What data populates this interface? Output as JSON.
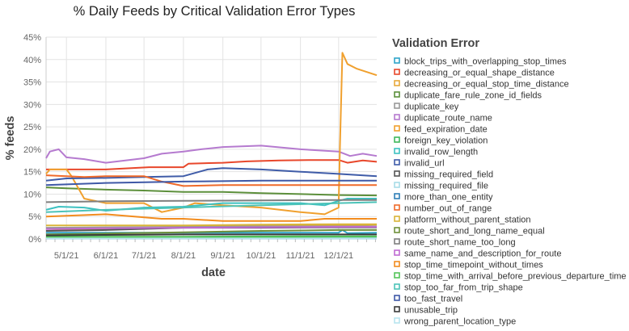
{
  "chart_data": {
    "type": "line",
    "title": "% Daily Feeds by Critical Validation Error Types",
    "xlabel": "date",
    "ylabel": "% feeds",
    "ylim": [
      0,
      0.45
    ],
    "xlim": [
      "2021-04-15",
      "2021-12-31"
    ],
    "grid": true,
    "legend_position": "right",
    "legend_title": "Validation Error",
    "y_ticks": [
      {
        "value": 0,
        "label": "0%"
      },
      {
        "value": 0.05,
        "label": "5%"
      },
      {
        "value": 0.1,
        "label": "10%"
      },
      {
        "value": 0.15,
        "label": "15%"
      },
      {
        "value": 0.2,
        "label": "20%"
      },
      {
        "value": 0.25,
        "label": "25%"
      },
      {
        "value": 0.3,
        "label": "30%"
      },
      {
        "value": 0.35,
        "label": "35%"
      },
      {
        "value": 0.4,
        "label": "40%"
      },
      {
        "value": 0.45,
        "label": "45%"
      }
    ],
    "x_ticks": [
      {
        "date": "2021-05-01",
        "label": "5/1/21"
      },
      {
        "date": "2021-06-01",
        "label": "6/1/21"
      },
      {
        "date": "2021-07-01",
        "label": "7/1/21"
      },
      {
        "date": "2021-08-01",
        "label": "8/1/21"
      },
      {
        "date": "2021-09-01",
        "label": "9/1/21"
      },
      {
        "date": "2021-10-01",
        "label": "10/1/21"
      },
      {
        "date": "2021-11-01",
        "label": "11/1/21"
      },
      {
        "date": "2021-12-01",
        "label": "12/1/21"
      }
    ],
    "series": [
      {
        "name": "block_trips_with_overlapping_stop_times",
        "color": "#2ea4c9",
        "points": [
          [
            "2021-04-15",
            0.014
          ],
          [
            "2021-07-01",
            0.014
          ],
          [
            "2021-12-01",
            0.014
          ],
          [
            "2021-12-04",
            0.02
          ],
          [
            "2021-12-08",
            0.013
          ],
          [
            "2021-12-31",
            0.014
          ]
        ]
      },
      {
        "name": "decreasing_or_equal_shape_distance",
        "color": "#e8472b",
        "points": [
          [
            "2021-04-15",
            0.155
          ],
          [
            "2021-05-10",
            0.155
          ],
          [
            "2021-06-01",
            0.155
          ],
          [
            "2021-07-05",
            0.16
          ],
          [
            "2021-08-01",
            0.16
          ],
          [
            "2021-08-05",
            0.168
          ],
          [
            "2021-09-01",
            0.17
          ],
          [
            "2021-09-20",
            0.173
          ],
          [
            "2021-10-15",
            0.175
          ],
          [
            "2021-11-10",
            0.176
          ],
          [
            "2021-12-01",
            0.176
          ],
          [
            "2021-12-08",
            0.17
          ],
          [
            "2021-12-20",
            0.175
          ],
          [
            "2021-12-31",
            0.172
          ]
        ]
      },
      {
        "name": "decreasing_or_equal_stop_time_distance",
        "color": "#e8a83a",
        "points": [
          [
            "2021-04-15",
            0.018
          ],
          [
            "2021-05-01",
            0.02
          ],
          [
            "2021-06-01",
            0.022
          ],
          [
            "2021-07-01",
            0.025
          ],
          [
            "2021-08-01",
            0.028
          ],
          [
            "2021-09-01",
            0.03
          ],
          [
            "2021-10-01",
            0.03
          ],
          [
            "2021-11-01",
            0.03
          ],
          [
            "2021-12-01",
            0.03
          ],
          [
            "2021-12-31",
            0.032
          ]
        ]
      },
      {
        "name": "duplicate_fare_rule_zone_id_fields",
        "color": "#5c8f3b",
        "points": [
          [
            "2021-04-15",
            0.115
          ],
          [
            "2021-05-01",
            0.113
          ],
          [
            "2021-06-01",
            0.11
          ],
          [
            "2021-07-01",
            0.108
          ],
          [
            "2021-08-01",
            0.105
          ],
          [
            "2021-09-01",
            0.105
          ],
          [
            "2021-10-01",
            0.102
          ],
          [
            "2021-11-01",
            0.1
          ],
          [
            "2021-12-01",
            0.098
          ],
          [
            "2021-12-31",
            0.097
          ]
        ]
      },
      {
        "name": "duplicate_key",
        "color": "#999999",
        "points": [
          [
            "2021-04-15",
            0.025
          ],
          [
            "2021-06-01",
            0.026
          ],
          [
            "2021-08-01",
            0.027
          ],
          [
            "2021-10-01",
            0.028
          ],
          [
            "2021-12-01",
            0.028
          ],
          [
            "2021-12-31",
            0.028
          ]
        ]
      },
      {
        "name": "duplicate_route_name",
        "color": "#b57acf",
        "points": [
          [
            "2021-04-15",
            0.18
          ],
          [
            "2021-04-18",
            0.195
          ],
          [
            "2021-04-25",
            0.2
          ],
          [
            "2021-05-01",
            0.182
          ],
          [
            "2021-05-15",
            0.178
          ],
          [
            "2021-06-01",
            0.17
          ],
          [
            "2021-07-01",
            0.18
          ],
          [
            "2021-07-15",
            0.19
          ],
          [
            "2021-08-01",
            0.195
          ],
          [
            "2021-08-15",
            0.2
          ],
          [
            "2021-09-01",
            0.205
          ],
          [
            "2021-10-01",
            0.208
          ],
          [
            "2021-11-01",
            0.2
          ],
          [
            "2021-12-01",
            0.195
          ],
          [
            "2021-12-10",
            0.185
          ],
          [
            "2021-12-20",
            0.19
          ],
          [
            "2021-12-31",
            0.185
          ]
        ]
      },
      {
        "name": "feed_expiration_date",
        "color": "#f0a02e",
        "points": [
          [
            "2021-04-15",
            0.145
          ],
          [
            "2021-04-18",
            0.155
          ],
          [
            "2021-05-01",
            0.155
          ],
          [
            "2021-05-05",
            0.14
          ],
          [
            "2021-05-15",
            0.09
          ],
          [
            "2021-06-01",
            0.08
          ],
          [
            "2021-07-01",
            0.08
          ],
          [
            "2021-07-15",
            0.06
          ],
          [
            "2021-08-01",
            0.07
          ],
          [
            "2021-08-10",
            0.08
          ],
          [
            "2021-09-01",
            0.075
          ],
          [
            "2021-10-01",
            0.07
          ],
          [
            "2021-11-01",
            0.06
          ],
          [
            "2021-11-20",
            0.055
          ],
          [
            "2021-12-01",
            0.07
          ],
          [
            "2021-12-02",
            0.2
          ],
          [
            "2021-12-04",
            0.415
          ],
          [
            "2021-12-08",
            0.39
          ],
          [
            "2021-12-15",
            0.38
          ],
          [
            "2021-12-31",
            0.365
          ]
        ]
      },
      {
        "name": "foreign_key_violation",
        "color": "#3fb85b",
        "points": [
          [
            "2021-04-15",
            0.005
          ],
          [
            "2021-08-01",
            0.005
          ],
          [
            "2021-12-01",
            0.006
          ],
          [
            "2021-12-31",
            0.006
          ]
        ]
      },
      {
        "name": "invalid_row_length",
        "color": "#3dc1c1",
        "points": [
          [
            "2021-04-15",
            0.065
          ],
          [
            "2021-04-25",
            0.072
          ],
          [
            "2021-05-15",
            0.07
          ],
          [
            "2021-06-01",
            0.063
          ],
          [
            "2021-07-01",
            0.07
          ],
          [
            "2021-08-01",
            0.072
          ],
          [
            "2021-09-01",
            0.08
          ],
          [
            "2021-10-01",
            0.08
          ],
          [
            "2021-11-01",
            0.08
          ],
          [
            "2021-11-20",
            0.075
          ],
          [
            "2021-12-01",
            0.085
          ],
          [
            "2021-12-08",
            0.09
          ],
          [
            "2021-12-31",
            0.09
          ]
        ]
      },
      {
        "name": "invalid_url",
        "color": "#3f5ca8",
        "points": [
          [
            "2021-04-15",
            0.13
          ],
          [
            "2021-05-01",
            0.135
          ],
          [
            "2021-06-01",
            0.136
          ],
          [
            "2021-07-01",
            0.138
          ],
          [
            "2021-08-01",
            0.14
          ],
          [
            "2021-08-20",
            0.155
          ],
          [
            "2021-09-01",
            0.158
          ],
          [
            "2021-10-01",
            0.155
          ],
          [
            "2021-11-01",
            0.15
          ],
          [
            "2021-12-01",
            0.145
          ],
          [
            "2021-12-31",
            0.14
          ]
        ]
      },
      {
        "name": "missing_required_field",
        "color": "#555555",
        "points": [
          [
            "2021-04-15",
            0.018
          ],
          [
            "2021-06-01",
            0.02
          ],
          [
            "2021-08-01",
            0.025
          ],
          [
            "2021-10-01",
            0.025
          ],
          [
            "2021-12-01",
            0.026
          ],
          [
            "2021-12-31",
            0.026
          ]
        ]
      },
      {
        "name": "missing_required_file",
        "color": "#a8dce8",
        "points": [
          [
            "2021-04-15",
            0.002
          ],
          [
            "2021-08-01",
            0.002
          ],
          [
            "2021-12-01",
            0.003
          ],
          [
            "2021-12-31",
            0.003
          ]
        ]
      },
      {
        "name": "more_than_one_entity",
        "color": "#2f7fb8",
        "points": [
          [
            "2021-04-15",
            0.001
          ],
          [
            "2021-12-31",
            0.001
          ]
        ]
      },
      {
        "name": "number_out_of_range",
        "color": "#ef6a2a",
        "points": [
          [
            "2021-04-15",
            0.142
          ],
          [
            "2021-05-01",
            0.14
          ],
          [
            "2021-05-15",
            0.138
          ],
          [
            "2021-06-01",
            0.14
          ],
          [
            "2021-07-01",
            0.14
          ],
          [
            "2021-07-15",
            0.128
          ],
          [
            "2021-08-01",
            0.118
          ],
          [
            "2021-09-01",
            0.12
          ],
          [
            "2021-10-01",
            0.12
          ],
          [
            "2021-11-01",
            0.12
          ],
          [
            "2021-12-01",
            0.12
          ],
          [
            "2021-12-31",
            0.12
          ]
        ]
      },
      {
        "name": "platform_without_parent_station",
        "color": "#d9b438",
        "points": [
          [
            "2021-04-15",
            0.03
          ],
          [
            "2021-06-01",
            0.03
          ],
          [
            "2021-08-01",
            0.03
          ],
          [
            "2021-10-01",
            0.032
          ],
          [
            "2021-12-01",
            0.033
          ],
          [
            "2021-12-31",
            0.033
          ]
        ]
      },
      {
        "name": "route_short_and_long_name_equal",
        "color": "#6e8f3a",
        "points": [
          [
            "2021-04-15",
            0.01
          ],
          [
            "2021-06-01",
            0.012
          ],
          [
            "2021-08-01",
            0.015
          ],
          [
            "2021-10-01",
            0.018
          ],
          [
            "2021-12-01",
            0.02
          ],
          [
            "2021-12-31",
            0.02
          ]
        ]
      },
      {
        "name": "route_short_name_too_long",
        "color": "#7f7f7f",
        "points": [
          [
            "2021-04-15",
            0.082
          ],
          [
            "2021-06-01",
            0.084
          ],
          [
            "2021-08-01",
            0.085
          ],
          [
            "2021-10-01",
            0.086
          ],
          [
            "2021-12-01",
            0.087
          ],
          [
            "2021-12-31",
            0.087
          ]
        ]
      },
      {
        "name": "same_name_and_description_for_route",
        "color": "#c06ad2",
        "points": [
          [
            "2021-04-15",
            0.022
          ],
          [
            "2021-06-01",
            0.024
          ],
          [
            "2021-08-01",
            0.025
          ],
          [
            "2021-10-01",
            0.026
          ],
          [
            "2021-12-01",
            0.027
          ],
          [
            "2021-12-31",
            0.027
          ]
        ]
      },
      {
        "name": "stop_time_timepoint_without_times",
        "color": "#f28c1e",
        "points": [
          [
            "2021-04-15",
            0.05
          ],
          [
            "2021-06-01",
            0.055
          ],
          [
            "2021-07-15",
            0.045
          ],
          [
            "2021-08-01",
            0.045
          ],
          [
            "2021-09-01",
            0.04
          ],
          [
            "2021-10-01",
            0.04
          ],
          [
            "2021-11-01",
            0.04
          ],
          [
            "2021-11-20",
            0.045
          ],
          [
            "2021-12-01",
            0.045
          ],
          [
            "2021-12-31",
            0.045
          ]
        ]
      },
      {
        "name": "stop_time_with_arrival_before_previous_departure_time",
        "color": "#54c45a",
        "points": [
          [
            "2021-04-15",
            0.004
          ],
          [
            "2021-08-01",
            0.004
          ],
          [
            "2021-12-01",
            0.005
          ],
          [
            "2021-12-31",
            0.005
          ]
        ]
      },
      {
        "name": "stop_too_far_from_trip_shape",
        "color": "#4cc3b8",
        "points": [
          [
            "2021-04-15",
            0.06
          ],
          [
            "2021-06-01",
            0.065
          ],
          [
            "2021-08-01",
            0.07
          ],
          [
            "2021-10-01",
            0.075
          ],
          [
            "2021-12-01",
            0.08
          ],
          [
            "2021-12-31",
            0.082
          ]
        ]
      },
      {
        "name": "too_fast_travel",
        "color": "#3e58a6",
        "points": [
          [
            "2021-04-15",
            0.12
          ],
          [
            "2021-06-01",
            0.125
          ],
          [
            "2021-08-01",
            0.128
          ],
          [
            "2021-10-01",
            0.13
          ],
          [
            "2021-12-01",
            0.13
          ],
          [
            "2021-12-31",
            0.13
          ]
        ]
      },
      {
        "name": "unusable_trip",
        "color": "#3a3a3a",
        "points": [
          [
            "2021-04-15",
            0.008
          ],
          [
            "2021-06-01",
            0.009
          ],
          [
            "2021-08-01",
            0.01
          ],
          [
            "2021-10-01",
            0.01
          ],
          [
            "2021-12-01",
            0.01
          ],
          [
            "2021-12-31",
            0.01
          ]
        ]
      },
      {
        "name": "wrong_parent_location_type",
        "color": "#b8e4ef",
        "points": [
          [
            "2021-04-15",
            0.001
          ],
          [
            "2021-12-31",
            0.001
          ]
        ]
      }
    ]
  }
}
